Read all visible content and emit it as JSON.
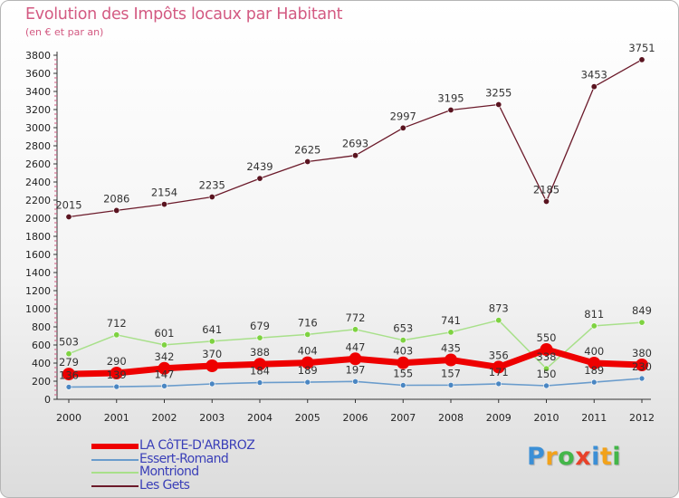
{
  "chart_data": {
    "type": "line",
    "title": "Evolution des Impôts locaux par Habitant",
    "subtitle": "(en € et par an)",
    "xlabel": "",
    "ylabel": "",
    "x": [
      "2000",
      "2001",
      "2002",
      "2003",
      "2004",
      "2005",
      "2006",
      "2007",
      "2008",
      "2009",
      "2010",
      "2011",
      "2012"
    ],
    "yticks": [
      0,
      200,
      400,
      600,
      800,
      1000,
      1200,
      1400,
      1600,
      1800,
      2000,
      2200,
      2400,
      2600,
      2800,
      3000,
      3200,
      3400,
      3600,
      3800
    ],
    "ylim": [
      0,
      3800
    ],
    "grid": false,
    "legend_position": "bottom-left",
    "series": [
      {
        "name": "Les Gets",
        "color": "#6b1a2a",
        "marker": "#5a1420",
        "values": [
          2015,
          2086,
          2154,
          2235,
          2439,
          2625,
          2693,
          2997,
          3195,
          3255,
          2185,
          3453,
          3751
        ],
        "labels": [
          "2015",
          "2086",
          "2154",
          "2235",
          "2439",
          "2625",
          "2693",
          "2997",
          "3195",
          "3255",
          "2185",
          "3453",
          "3751"
        ]
      },
      {
        "name": "Montriond",
        "color": "#a8e08a",
        "marker": "#7ed241",
        "values": [
          503,
          712,
          601,
          641,
          679,
          716,
          772,
          653,
          741,
          873,
          338,
          811,
          849
        ],
        "labels": [
          "503",
          "712",
          "601",
          "641",
          "679",
          "716",
          "772",
          "653",
          "741",
          "873",
          "338",
          "811",
          "849"
        ]
      },
      {
        "name": "Essert-Romand",
        "color": "#6a9ccc",
        "marker": "#4a86c2",
        "values": [
          136,
          139,
          147,
          170,
          184,
          189,
          197,
          155,
          157,
          171,
          150,
          189,
          230
        ],
        "labels": [
          "136",
          "139",
          "147",
          "",
          "184",
          "189",
          "197",
          "155",
          "157",
          "171",
          "150",
          "189",
          "230"
        ]
      },
      {
        "name": "LA CôTE-D'ARBROZ",
        "color": "#ee0000",
        "marker": "#ee0000",
        "values": [
          279,
          290,
          342,
          370,
          388,
          404,
          447,
          403,
          435,
          356,
          550,
          400,
          380
        ],
        "labels": [
          "279",
          "290",
          "342",
          "370",
          "388",
          "404",
          "447",
          "403",
          "435",
          "356",
          "550",
          "400",
          "380"
        ]
      }
    ]
  },
  "legend": {
    "items": [
      {
        "label": "LA CôTE-D'ARBROZ",
        "color": "#ee0000"
      },
      {
        "label": "Essert-Romand",
        "color": "#6a9ccc"
      },
      {
        "label": "Montriond",
        "color": "#a8e08a"
      },
      {
        "label": "Les Gets",
        "color": "#6b1a2a"
      }
    ]
  },
  "logo": {
    "letters": [
      {
        "ch": "P",
        "color": "#3b8fd6"
      },
      {
        "ch": "r",
        "color": "#f2a21b"
      },
      {
        "ch": "o",
        "color": "#43b649"
      },
      {
        "ch": "x",
        "color": "#e8422a"
      },
      {
        "ch": "i",
        "color": "#3b8fd6"
      },
      {
        "ch": "t",
        "color": "#f2a21b"
      },
      {
        "ch": "i",
        "color": "#43b649"
      }
    ]
  }
}
